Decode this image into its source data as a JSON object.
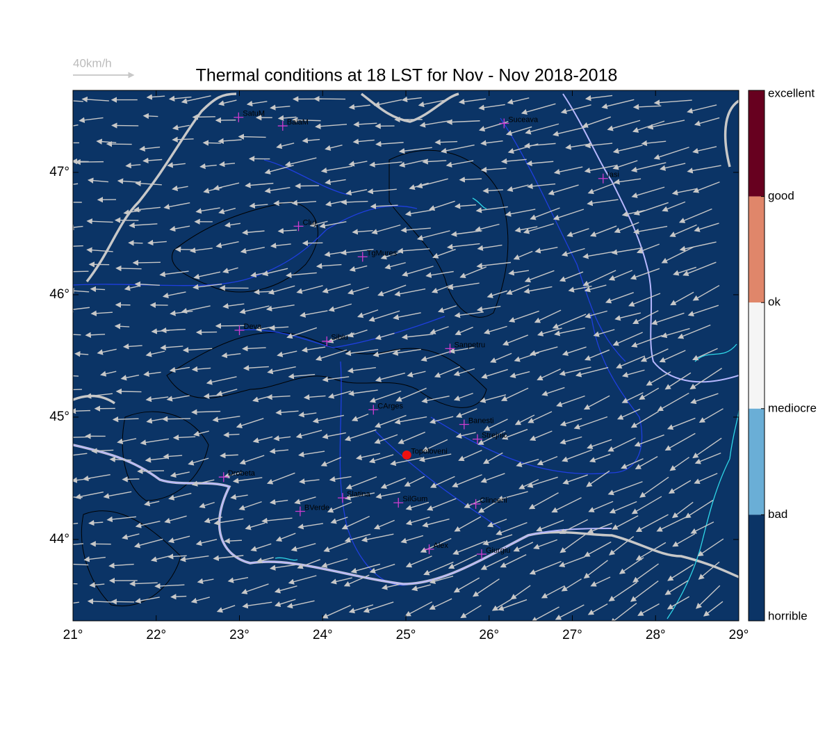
{
  "chart_data": {
    "type": "map",
    "title": "Thermal conditions at 18 LST for Nov - Nov  2018-2018",
    "scale_arrow_label": "40km/h",
    "xlim": [
      21,
      29
    ],
    "ylim": [
      43.335,
      47.67
    ],
    "xticks": [
      {
        "value": 21,
        "label": "21°"
      },
      {
        "value": 22,
        "label": "22°"
      },
      {
        "value": 23,
        "label": "23°"
      },
      {
        "value": 24,
        "label": "24°"
      },
      {
        "value": 25,
        "label": "25°"
      },
      {
        "value": 26,
        "label": "26°"
      },
      {
        "value": 27,
        "label": "27°"
      },
      {
        "value": 28,
        "label": "28°"
      },
      {
        "value": 29,
        "label": "29°"
      }
    ],
    "yticks": [
      {
        "value": 44,
        "label": "44°"
      },
      {
        "value": 45,
        "label": "45°"
      },
      {
        "value": 46,
        "label": "46°"
      },
      {
        "value": 47,
        "label": "47°"
      }
    ],
    "background_color": "#0b3466",
    "colorbar": {
      "labels": [
        "excellent",
        "good",
        "ok",
        "mediocre",
        "bad",
        "horrible"
      ],
      "colors": [
        "#67001f",
        "#e0866a",
        "#f5f5f5",
        "#6aaed6",
        "#0b3466"
      ]
    },
    "stations": [
      {
        "name": "SatuM",
        "lon": 22.99,
        "lat": 47.45
      },
      {
        "name": "BaiaM",
        "lon": 23.52,
        "lat": 47.38
      },
      {
        "name": "Suceava",
        "lon": 26.18,
        "lat": 47.4
      },
      {
        "name": "Iasi",
        "lon": 27.37,
        "lat": 46.95
      },
      {
        "name": "Cluj",
        "lon": 23.71,
        "lat": 46.56
      },
      {
        "name": "TgMures",
        "lon": 24.48,
        "lat": 46.31
      },
      {
        "name": "Deva",
        "lon": 23.0,
        "lat": 45.71
      },
      {
        "name": "Sibiu",
        "lon": 24.05,
        "lat": 45.62
      },
      {
        "name": "Sanpetru",
        "lon": 25.53,
        "lat": 45.56
      },
      {
        "name": "CArges",
        "lon": 24.61,
        "lat": 45.06
      },
      {
        "name": "Banesti",
        "lon": 25.7,
        "lat": 44.94
      },
      {
        "name": "Strejnic",
        "lon": 25.86,
        "lat": 44.82
      },
      {
        "name": "Topoloveni",
        "lon": 25.01,
        "lat": 44.69,
        "highlight": true
      },
      {
        "name": "Drobeta",
        "lon": 22.81,
        "lat": 44.51
      },
      {
        "name": "Slatina",
        "lon": 24.24,
        "lat": 44.34
      },
      {
        "name": "SilGum",
        "lon": 24.91,
        "lat": 44.3
      },
      {
        "name": "BVerde",
        "lon": 23.73,
        "lat": 44.23
      },
      {
        "name": "Clinceni",
        "lon": 25.84,
        "lat": 44.29
      },
      {
        "name": "Alex",
        "lon": 25.28,
        "lat": 43.92
      },
      {
        "name": "Giurgiu",
        "lon": 25.91,
        "lat": 43.88
      }
    ]
  }
}
